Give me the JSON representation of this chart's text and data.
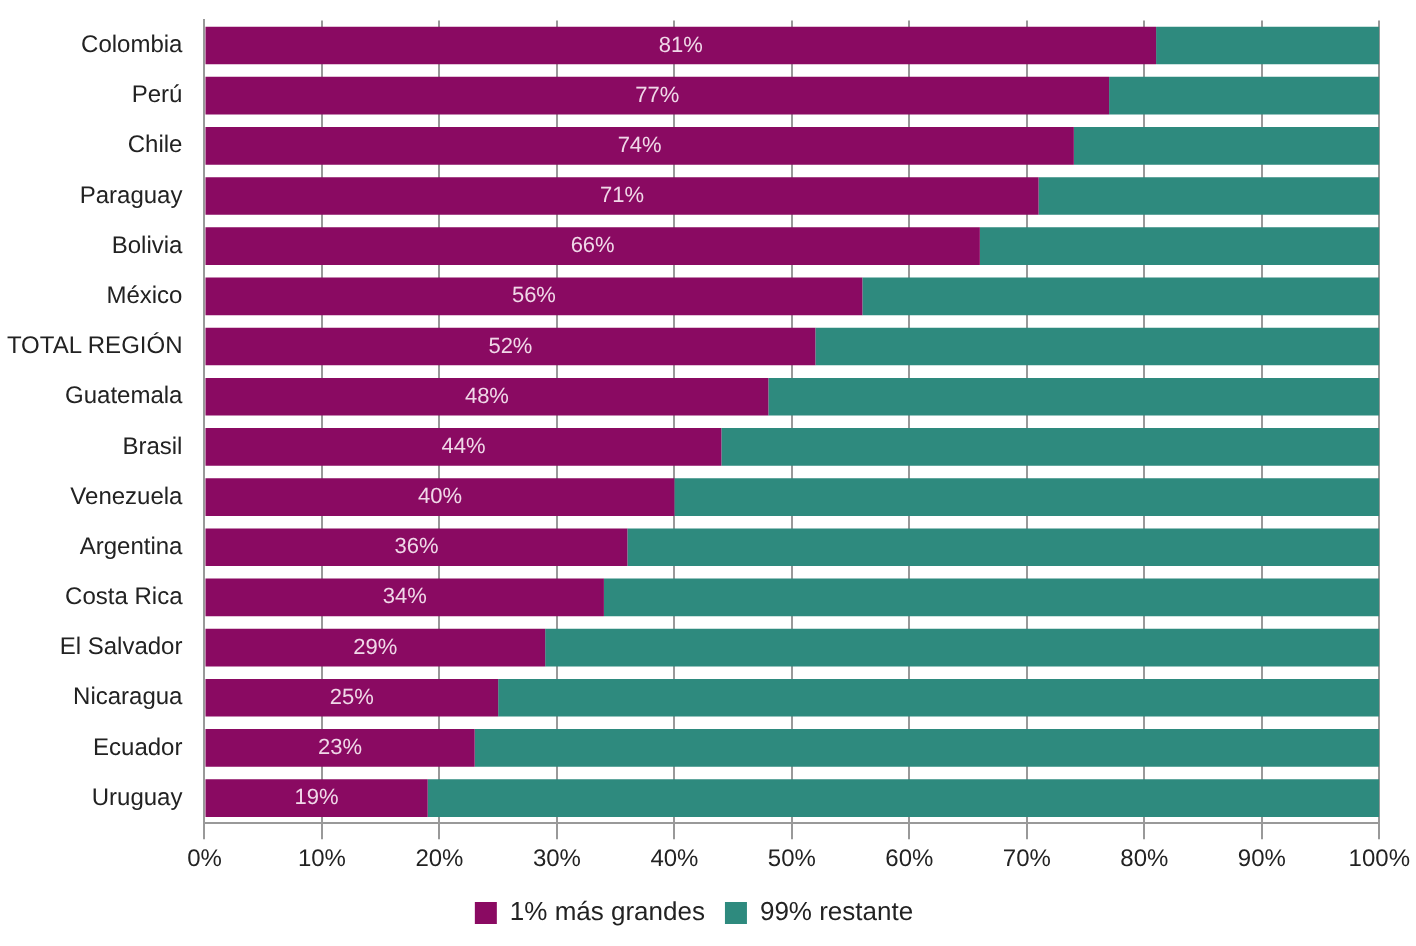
{
  "chart_data": {
    "type": "bar",
    "orientation": "horizontal",
    "stacked": true,
    "categories": [
      "Colombia",
      "Perú",
      "Chile",
      "Paraguay",
      "Bolivia",
      "México",
      "TOTAL REGIÓN",
      "Guatemala",
      "Brasil",
      "Venezuela",
      "Argentina",
      "Costa Rica",
      "El Salvador",
      "Nicaragua",
      "Ecuador",
      "Uruguay"
    ],
    "series": [
      {
        "name": "1% más grandes",
        "color": "#8a0a62",
        "values": [
          81,
          77,
          74,
          71,
          66,
          56,
          52,
          48,
          44,
          40,
          36,
          34,
          29,
          25,
          23,
          19
        ],
        "value_labels": [
          "81%",
          "77%",
          "74%",
          "71%",
          "66%",
          "56%",
          "52%",
          "48%",
          "44%",
          "40%",
          "36%",
          "34%",
          "29%",
          "25%",
          "23%",
          "19%"
        ]
      },
      {
        "name": "99% restante",
        "color": "#2e8a7e",
        "values": [
          19,
          23,
          26,
          29,
          34,
          44,
          48,
          52,
          56,
          60,
          64,
          66,
          71,
          75,
          77,
          81
        ]
      }
    ],
    "xlim": [
      0,
      100
    ],
    "xticks": [
      {
        "value": 0,
        "label": "0%"
      },
      {
        "value": 10,
        "label": "10%"
      },
      {
        "value": 20,
        "label": "20%"
      },
      {
        "value": 30,
        "label": "30%"
      },
      {
        "value": 40,
        "label": "40%"
      },
      {
        "value": 50,
        "label": "50%"
      },
      {
        "value": 60,
        "label": "60%"
      },
      {
        "value": 70,
        "label": "70%"
      },
      {
        "value": 80,
        "label": "80%"
      },
      {
        "value": 90,
        "label": "90%"
      },
      {
        "value": 100,
        "label": "100%"
      }
    ],
    "grid": "x",
    "legend": "bottom"
  }
}
